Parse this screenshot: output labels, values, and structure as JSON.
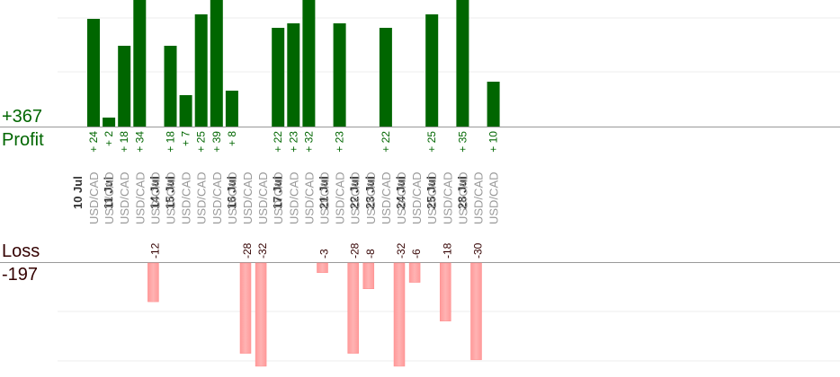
{
  "summary": {
    "profit_total": "+367",
    "profit_label": "Profit",
    "loss_label": "Loss",
    "loss_total": "-197"
  },
  "colors": {
    "profit_bar": "#006600",
    "loss_bar": "#ffb3b3",
    "profit_text": "#006600",
    "loss_text": "#330000",
    "date_text": "#333333",
    "pair_text": "#999999",
    "grid": "#eeeeee",
    "axis": "#999999"
  },
  "chart_data": {
    "type": "bar",
    "symbol": "USD/CAD",
    "dates": [
      "10 Jul",
      "11 Jul",
      "14 Jul",
      "15 Jul",
      "16 Jul",
      "17 Jul",
      "21 Jul",
      "22 Jul",
      "23 Jul",
      "24 Jul",
      "25 Jul",
      "28 Jul"
    ],
    "trades": [
      {
        "date": "10 Jul",
        "pair": "USD/CAD",
        "value": 24
      },
      {
        "date": "10 Jul",
        "pair": "USD/CAD",
        "value": 2
      },
      {
        "date": "11 Jul",
        "pair": "USD/CAD",
        "value": 18
      },
      {
        "date": "11 Jul",
        "pair": "USD/CAD",
        "value": 34
      },
      {
        "date": "11 Jul",
        "pair": "USD/CAD",
        "value": -12
      },
      {
        "date": "14 Jul",
        "pair": "USD/CAD",
        "value": 18
      },
      {
        "date": "15 Jul",
        "pair": "USD/CAD",
        "value": 7
      },
      {
        "date": "15 Jul",
        "pair": "USD/CAD",
        "value": 25
      },
      {
        "date": "15 Jul",
        "pair": "USD/CAD",
        "value": 39
      },
      {
        "date": "15 Jul",
        "pair": "USD/CAD",
        "value": 8
      },
      {
        "date": "16 Jul",
        "pair": "USD/CAD",
        "value": -28
      },
      {
        "date": "16 Jul",
        "pair": "USD/CAD",
        "value": -32
      },
      {
        "date": "16 Jul",
        "pair": "USD/CAD",
        "value": 22
      },
      {
        "date": "17 Jul",
        "pair": "USD/CAD",
        "value": 23
      },
      {
        "date": "17 Jul",
        "pair": "USD/CAD",
        "value": 32
      },
      {
        "date": "17 Jul",
        "pair": "USD/CAD",
        "value": -3
      },
      {
        "date": "21 Jul",
        "pair": "USD/CAD",
        "value": 23
      },
      {
        "date": "21 Jul",
        "pair": "USD/CAD",
        "value": -28
      },
      {
        "date": "22 Jul",
        "pair": "USD/CAD",
        "value": -8
      },
      {
        "date": "23 Jul",
        "pair": "USD/CAD",
        "value": 22
      },
      {
        "date": "23 Jul",
        "pair": "USD/CAD",
        "value": -32
      },
      {
        "date": "24 Jul",
        "pair": "USD/CAD",
        "value": -6
      },
      {
        "date": "24 Jul",
        "pair": "USD/CAD",
        "value": 25
      },
      {
        "date": "25 Jul",
        "pair": "USD/CAD",
        "value": -18
      },
      {
        "date": "25 Jul",
        "pair": "USD/CAD",
        "value": 35
      },
      {
        "date": "28 Jul",
        "pair": "USD/CAD",
        "value": -30
      },
      {
        "date": "28 Jul",
        "pair": "USD/CAD",
        "value": 10
      }
    ],
    "profit_ylim": [
      0,
      24
    ],
    "loss_ylim": [
      -32,
      0
    ],
    "grid": true,
    "legend": "none"
  }
}
